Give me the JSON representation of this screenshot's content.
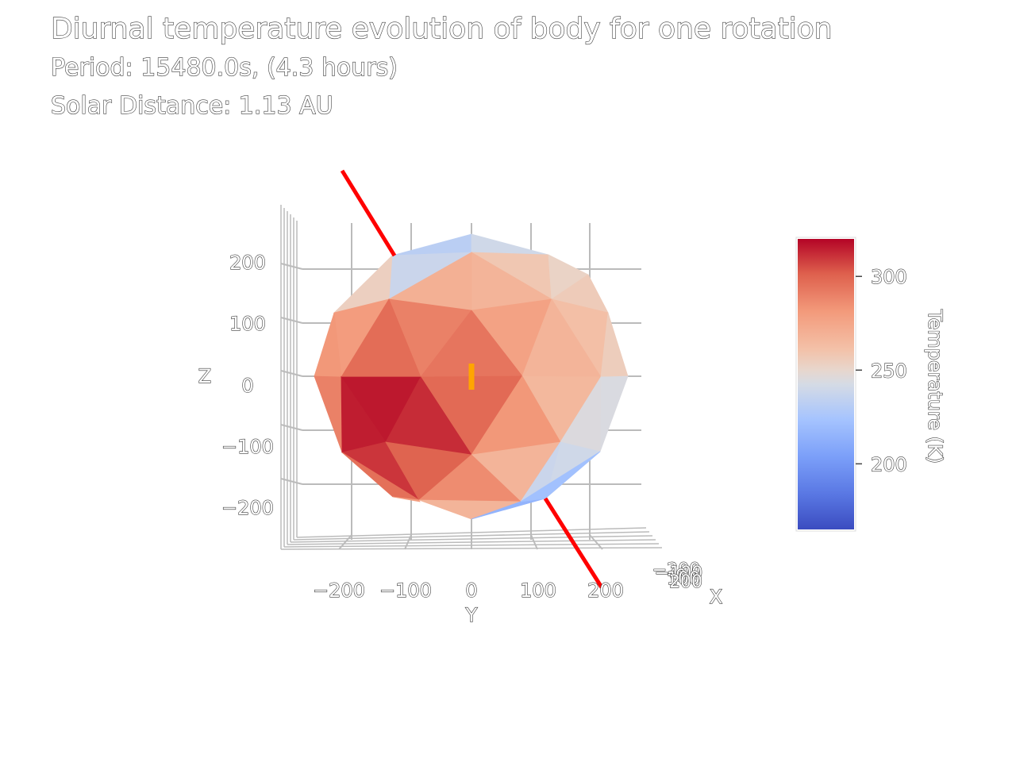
{
  "title": "Diurnal temperature evolution of body for one rotation",
  "subtitle_period": "Period: 15480.0s, (4.3 hours)",
  "subtitle_distance": "Solar Distance: 1.13 AU",
  "chart_data": {
    "type": "mesh3d",
    "title": "Diurnal temperature evolution of body for one rotation",
    "subtitles": [
      "Period: 15480.0s, (4.3 hours)",
      "Solar Distance: 1.13 AU"
    ],
    "axes": {
      "x": {
        "label": "X",
        "ticks": [
          "−200",
          "−100",
          "0",
          "100",
          "200"
        ]
      },
      "y": {
        "label": "Y",
        "ticks": [
          "−200",
          "−100",
          "0",
          "100",
          "200"
        ]
      },
      "z": {
        "label": "Z",
        "ticks": [
          "200",
          "100",
          "0",
          "−100",
          "−200"
        ]
      }
    },
    "colorbar": {
      "title": "Temperature (K)",
      "colorscale": "coolwarm",
      "range": [
        165,
        320
      ],
      "tick_values": [
        300,
        250,
        200
      ],
      "tick_labels": [
        "300",
        "250",
        "200"
      ]
    },
    "palette": {
      "cold": "#3b4cc0",
      "neutral": "#dddddd",
      "hot": "#b40426",
      "rotation_axis": "#ff0000",
      "sun_marker": "#ffa500"
    },
    "rotation_axis": {
      "color": "#ff0000"
    },
    "sun_direction_marker": {
      "color": "#ffa500"
    }
  }
}
